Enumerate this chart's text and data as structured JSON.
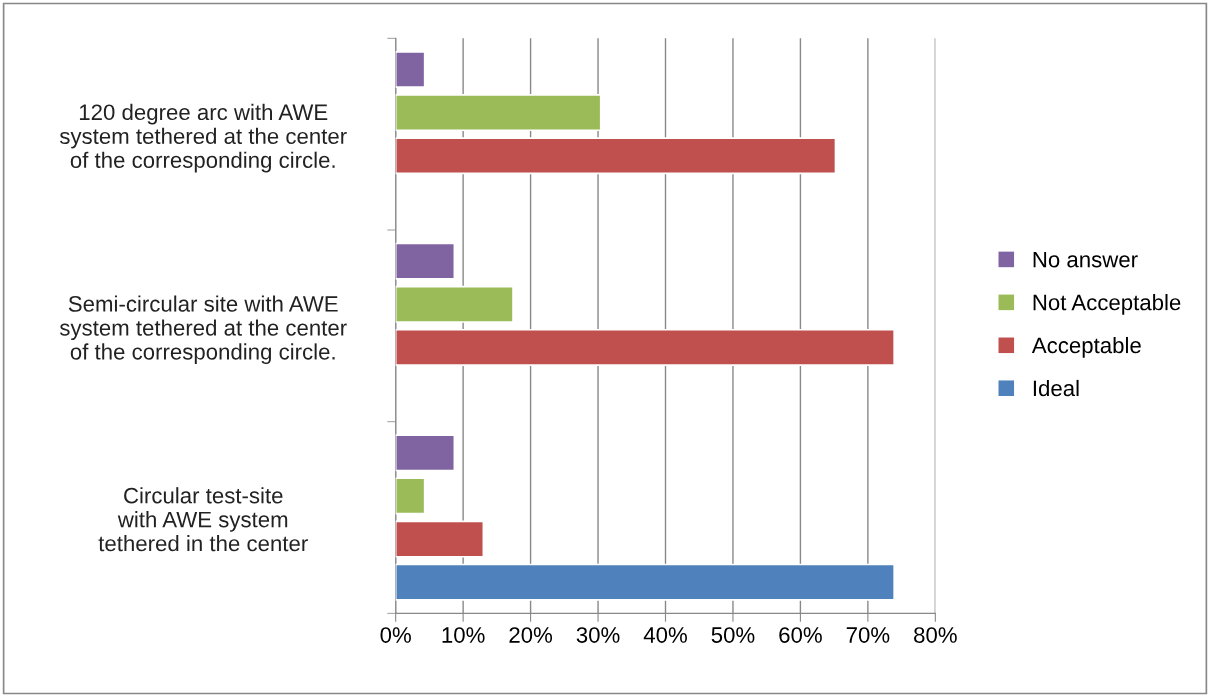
{
  "chart_data": {
    "type": "bar",
    "orientation": "horizontal",
    "categories": [
      "120 degree arc with AWE\nsystem tethered at the center\nof the corresponding circle.",
      "Semi-circular site with AWE\nsystem tethered at the center\nof the corresponding circle.",
      "Circular test-site\nwith AWE system\ntethered in the center"
    ],
    "series": [
      {
        "name": "No answer",
        "color": "#8064a2",
        "values": [
          4.3,
          8.7,
          8.7
        ]
      },
      {
        "name": "Not Acceptable",
        "color": "#9bbb59",
        "values": [
          30.4,
          17.4,
          4.3
        ]
      },
      {
        "name": "Acceptable",
        "color": "#c0504d",
        "values": [
          65.2,
          73.9,
          13.0
        ]
      },
      {
        "name": "Ideal",
        "color": "#4f81bd",
        "values": [
          null,
          null,
          73.9
        ]
      }
    ],
    "xlim": [
      0,
      80
    ],
    "xticks": [
      {
        "value": 0,
        "label": "0%"
      },
      {
        "value": 10,
        "label": "10%"
      },
      {
        "value": 20,
        "label": "20%"
      },
      {
        "value": 30,
        "label": "30%"
      },
      {
        "value": 40,
        "label": "40%"
      },
      {
        "value": 50,
        "label": "50%"
      },
      {
        "value": 60,
        "label": "60%"
      },
      {
        "value": 70,
        "label": "70%"
      },
      {
        "value": 80,
        "label": "80%"
      }
    ],
    "grid": "x",
    "legend": "right"
  }
}
